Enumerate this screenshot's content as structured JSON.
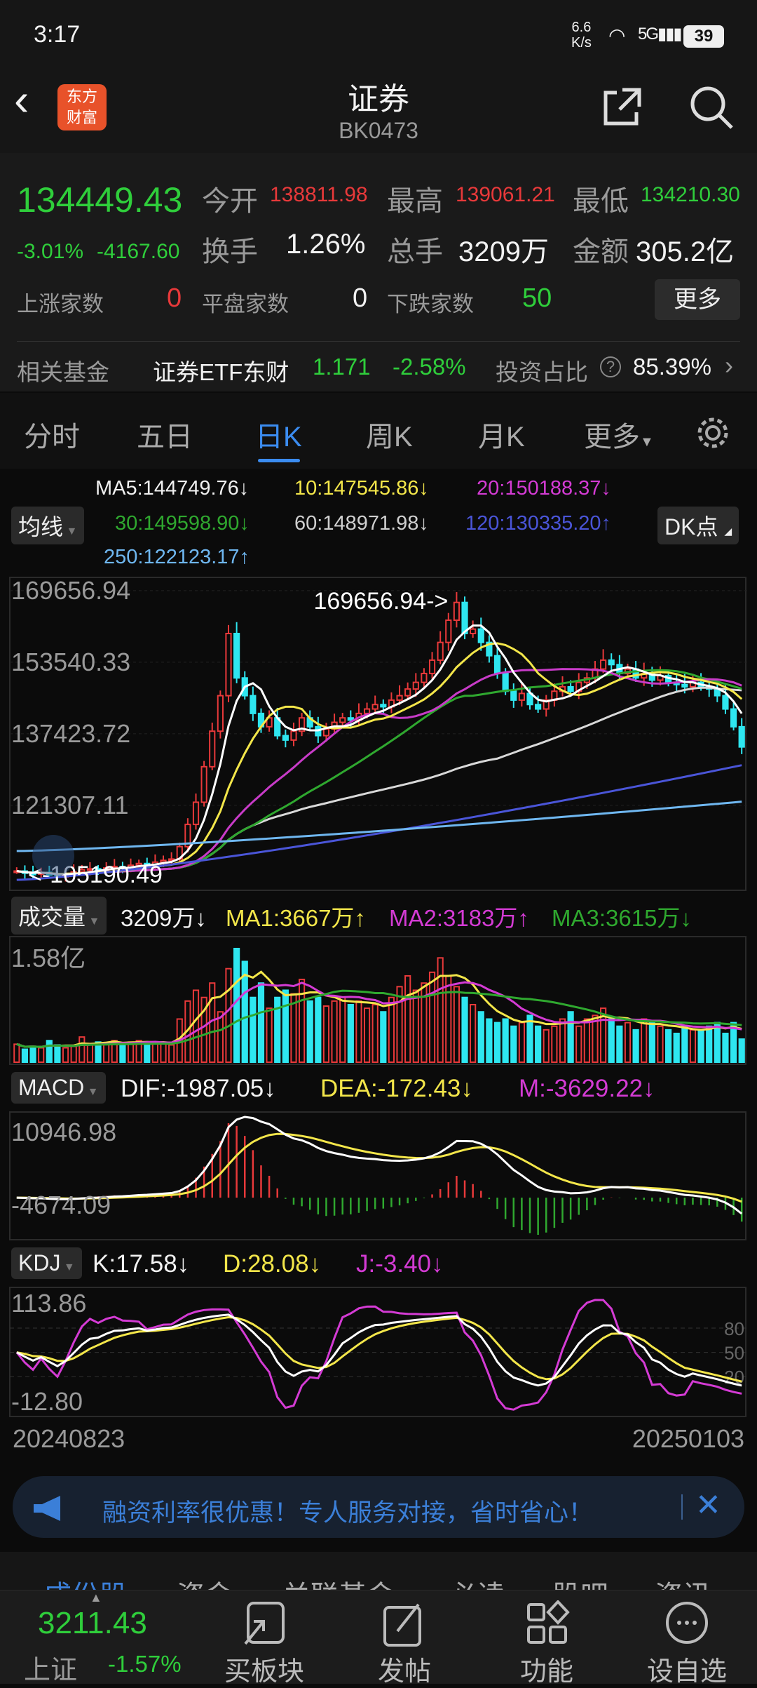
{
  "status": {
    "time": "3:17",
    "net_speed": "6.6",
    "net_unit": "K/s",
    "battery": "39"
  },
  "header": {
    "title": "证券",
    "code": "BK0473"
  },
  "quote": {
    "price": "134449.43",
    "pct": "-3.01%",
    "change": "-4167.60",
    "open_label": "今开",
    "open": "138811.98",
    "high_label": "最高",
    "high": "139061.21",
    "low_label": "最低",
    "low": "134210.30",
    "turnover_label": "换手",
    "turnover": "1.26%",
    "volume_label": "总手",
    "volume": "3209万",
    "amount_label": "金额",
    "amount": "305.2亿",
    "up_label": "上涨家数",
    "up": "0",
    "flat_label": "平盘家数",
    "flat": "0",
    "down_label": "下跌家数",
    "down": "50",
    "more": "更多"
  },
  "fund": {
    "label": "相关基金",
    "name": "证券ETF东财",
    "price": "1.171",
    "pct": "-2.58%",
    "ratio_label": "投资占比",
    "ratio": "85.39%"
  },
  "tabs": [
    "分时",
    "五日",
    "日K",
    "周K",
    "月K",
    "更多"
  ],
  "active_tab": 2,
  "ma_selector": "均线",
  "dk_button": "DK点",
  "ma_legend": [
    {
      "text": "MA5:144749.76↓",
      "color": "#f0f0f0"
    },
    {
      "text": "10:147545.86↓",
      "color": "#f3e64a"
    },
    {
      "text": "20:150188.37↓",
      "color": "#d43bd4"
    },
    {
      "text": "30:149598.90↓",
      "color": "#2fa82f"
    },
    {
      "text": "60:148971.98↓",
      "color": "#cfcfcf"
    },
    {
      "text": "120:130335.20↑",
      "color": "#4a55d8"
    },
    {
      "text": "250:122123.17↑",
      "color": "#6fb7f0"
    }
  ],
  "volume_legend": {
    "selector": "成交量",
    "value": "3209万↓",
    "ma1": "MA1:3667万↑",
    "ma2": "MA2:3183万↑",
    "ma3": "MA3:3615万↓",
    "max_label": "1.58亿"
  },
  "macd_legend": {
    "selector": "MACD",
    "dif": "DIF:-1987.05↓",
    "dea": "DEA:-172.43↓",
    "m": "M:-3629.22↓",
    "top_label": "10946.98",
    "bottom_label": "-4674.09"
  },
  "kdj_legend": {
    "selector": "KDJ",
    "k": "K:17.58↓",
    "d": "D:28.08↓",
    "j": "J:-3.40↓",
    "top_label": "113.86",
    "bottom_label": "-12.80",
    "right_ticks": [
      "80",
      "50",
      "20"
    ]
  },
  "chart_data": {
    "type": "candlestick",
    "ylim": [
      102000,
      172800
    ],
    "y_ticks": [
      "169656.94",
      "153540.33",
      "137423.72",
      "121307.11"
    ],
    "high_annotation": "169656.94->",
    "low_annotation": "<-105190.49",
    "x_start": "20240823",
    "x_end": "20250103",
    "up_color": "#e8393a",
    "down_color": "#2ee6f0",
    "close": [
      106500,
      106000,
      105800,
      106200,
      105600,
      105190,
      105900,
      106300,
      106800,
      107000,
      106700,
      107200,
      107500,
      107300,
      107800,
      108200,
      108000,
      108500,
      108900,
      109200,
      112000,
      117000,
      122000,
      130000,
      138000,
      146000,
      160000,
      150000,
      146000,
      142000,
      139000,
      141000,
      137000,
      136000,
      138000,
      141000,
      139000,
      137000,
      138500,
      140000,
      141000,
      140500,
      142000,
      143000,
      144000,
      143500,
      145000,
      146000,
      147500,
      149000,
      151000,
      154000,
      158000,
      163000,
      167000,
      160000,
      161000,
      158000,
      155000,
      151000,
      147000,
      145000,
      146500,
      144000,
      143000,
      145000,
      147000,
      148000,
      147000,
      149000,
      150000,
      152000,
      154000,
      153000,
      151000,
      152000,
      150000,
      151000,
      149500,
      150500,
      149000,
      148500,
      148000,
      149000,
      148000,
      147500,
      146000,
      143000,
      139000,
      134449.43
    ],
    "volume_wan": [
      2500,
      1800,
      2200,
      2000,
      3000,
      2400,
      2000,
      2200,
      3500,
      2600,
      2800,
      2500,
      3000,
      2600,
      2800,
      3000,
      2700,
      2800,
      2600,
      2400,
      6000,
      8500,
      10000,
      9000,
      11000,
      7000,
      13000,
      15800,
      14000,
      9000,
      11000,
      7500,
      9000,
      10000,
      9500,
      11500,
      8500,
      9000,
      7800,
      8500,
      9000,
      8000,
      8500,
      7500,
      8000,
      7000,
      9000,
      10500,
      12000,
      10000,
      11000,
      12500,
      14500,
      12000,
      10500,
      9000,
      8000,
      7000,
      6000,
      5500,
      6000,
      5000,
      5500,
      6500,
      5000,
      4500,
      5000,
      6000,
      7000,
      5000,
      6000,
      6500,
      7500,
      6000,
      5000,
      5500,
      4500,
      6000,
      5500,
      5000,
      4500,
      4000,
      5000,
      4500,
      4500,
      5000,
      5500,
      4000,
      5500,
      3209
    ],
    "ma120": [
      104500,
      130335.2
    ],
    "ma250": [
      111000,
      122123.17
    ]
  },
  "banner": {
    "text": "融资利率很优惠！专人服务对接，省时省心！"
  },
  "bottom_tabs": [
    "成份股",
    "资金",
    "关联基金",
    "必读",
    "股吧",
    "资讯"
  ],
  "nav": {
    "index_value": "3211.43",
    "index_name": "上证",
    "index_pct": "-1.57%",
    "items": [
      "买板块",
      "发帖",
      "功能",
      "设自选"
    ]
  }
}
